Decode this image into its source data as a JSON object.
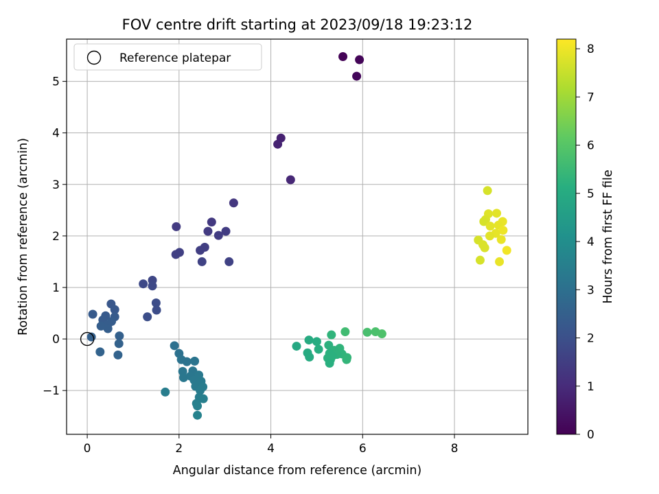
{
  "chart_data": {
    "type": "scatter",
    "title": "FOV centre drift starting at 2023/09/18 19:23:12",
    "xlabel": "Angular distance from reference (arcmin)",
    "ylabel": "Rotation from reference (arcmin)",
    "xlim": [
      -0.45,
      9.6
    ],
    "ylim": [
      -1.85,
      5.82
    ],
    "xticks": [
      "0",
      "2",
      "4",
      "6",
      "8"
    ],
    "yticks": [
      "−1",
      "0",
      "1",
      "2",
      "3",
      "4",
      "5"
    ],
    "grid": true,
    "legend": {
      "placement": "top-left",
      "label": "Reference platepar"
    },
    "reference_point": {
      "x": 0,
      "y": 0
    },
    "colorbar": {
      "label": "Hours from first FF file",
      "range": [
        0,
        8.2
      ],
      "ticks": [
        "0",
        "1",
        "2",
        "3",
        "4",
        "5",
        "6",
        "7",
        "8"
      ],
      "colormap": "viridis"
    },
    "points": [
      {
        "x": 5.57,
        "y": 5.48,
        "c": 0.05
      },
      {
        "x": 5.93,
        "y": 5.42,
        "c": 0.1
      },
      {
        "x": 5.87,
        "y": 5.1,
        "c": 0.15
      },
      {
        "x": 4.22,
        "y": 3.9,
        "c": 0.75
      },
      {
        "x": 4.15,
        "y": 3.78,
        "c": 0.8
      },
      {
        "x": 4.43,
        "y": 3.09,
        "c": 0.9
      },
      {
        "x": 3.19,
        "y": 2.64,
        "c": 1.3
      },
      {
        "x": 2.71,
        "y": 2.27,
        "c": 1.35
      },
      {
        "x": 1.94,
        "y": 2.18,
        "c": 1.4
      },
      {
        "x": 2.63,
        "y": 2.09,
        "c": 1.4
      },
      {
        "x": 3.02,
        "y": 2.09,
        "c": 1.45
      },
      {
        "x": 2.86,
        "y": 2.01,
        "c": 1.45
      },
      {
        "x": 2.56,
        "y": 1.78,
        "c": 1.5
      },
      {
        "x": 2.46,
        "y": 1.72,
        "c": 1.5
      },
      {
        "x": 2.01,
        "y": 1.68,
        "c": 1.55
      },
      {
        "x": 1.93,
        "y": 1.64,
        "c": 1.55
      },
      {
        "x": 2.5,
        "y": 1.5,
        "c": 1.6
      },
      {
        "x": 3.09,
        "y": 1.5,
        "c": 1.6
      },
      {
        "x": 1.42,
        "y": 1.14,
        "c": 1.75
      },
      {
        "x": 1.22,
        "y": 1.07,
        "c": 1.8
      },
      {
        "x": 1.42,
        "y": 1.03,
        "c": 1.8
      },
      {
        "x": 1.5,
        "y": 0.7,
        "c": 1.9
      },
      {
        "x": 1.51,
        "y": 0.56,
        "c": 1.9
      },
      {
        "x": 1.31,
        "y": 0.43,
        "c": 1.95
      },
      {
        "x": 0.52,
        "y": 0.68,
        "c": 2.2
      },
      {
        "x": 0.6,
        "y": 0.57,
        "c": 2.25
      },
      {
        "x": 0.12,
        "y": 0.48,
        "c": 2.3
      },
      {
        "x": 0.4,
        "y": 0.45,
        "c": 2.3
      },
      {
        "x": 0.6,
        "y": 0.43,
        "c": 2.35
      },
      {
        "x": 0.34,
        "y": 0.37,
        "c": 2.35
      },
      {
        "x": 0.53,
        "y": 0.34,
        "c": 2.4
      },
      {
        "x": 0.45,
        "y": 0.28,
        "c": 2.4
      },
      {
        "x": 0.3,
        "y": 0.25,
        "c": 2.45
      },
      {
        "x": 0.45,
        "y": 0.2,
        "c": 2.45
      },
      {
        "x": 0.7,
        "y": 0.06,
        "c": 2.5
      },
      {
        "x": 0.09,
        "y": 0.04,
        "c": 2.5
      },
      {
        "x": 0.69,
        "y": -0.09,
        "c": 2.55
      },
      {
        "x": 0.28,
        "y": -0.25,
        "c": 2.6
      },
      {
        "x": 0.67,
        "y": -0.31,
        "c": 2.6
      },
      {
        "x": 1.9,
        "y": -0.13,
        "c": 3.0
      },
      {
        "x": 2.0,
        "y": -0.28,
        "c": 3.05
      },
      {
        "x": 2.05,
        "y": -0.4,
        "c": 3.1
      },
      {
        "x": 2.17,
        "y": -0.44,
        "c": 3.1
      },
      {
        "x": 2.34,
        "y": -0.43,
        "c": 3.15
      },
      {
        "x": 2.08,
        "y": -0.63,
        "c": 3.2
      },
      {
        "x": 2.3,
        "y": -0.62,
        "c": 3.2
      },
      {
        "x": 2.1,
        "y": -0.75,
        "c": 3.25
      },
      {
        "x": 2.25,
        "y": -0.72,
        "c": 3.25
      },
      {
        "x": 2.43,
        "y": -0.7,
        "c": 3.3
      },
      {
        "x": 2.33,
        "y": -0.8,
        "c": 3.3
      },
      {
        "x": 2.48,
        "y": -0.82,
        "c": 3.35
      },
      {
        "x": 2.36,
        "y": -0.92,
        "c": 3.35
      },
      {
        "x": 2.52,
        "y": -0.93,
        "c": 3.4
      },
      {
        "x": 2.46,
        "y": -1.0,
        "c": 3.4
      },
      {
        "x": 1.7,
        "y": -1.03,
        "c": 3.45
      },
      {
        "x": 2.44,
        "y": -1.13,
        "c": 3.45
      },
      {
        "x": 2.53,
        "y": -1.16,
        "c": 3.5
      },
      {
        "x": 2.38,
        "y": -1.25,
        "c": 3.5
      },
      {
        "x": 2.4,
        "y": -1.3,
        "c": 3.55
      },
      {
        "x": 2.4,
        "y": -1.48,
        "c": 3.6
      },
      {
        "x": 5.62,
        "y": 0.14,
        "c": 5.6
      },
      {
        "x": 5.32,
        "y": 0.08,
        "c": 5.3
      },
      {
        "x": 4.83,
        "y": -0.02,
        "c": 5.0
      },
      {
        "x": 5.0,
        "y": -0.05,
        "c": 5.05
      },
      {
        "x": 4.56,
        "y": -0.14,
        "c": 4.9
      },
      {
        "x": 5.26,
        "y": -0.12,
        "c": 5.2
      },
      {
        "x": 5.5,
        "y": -0.18,
        "c": 5.3
      },
      {
        "x": 5.04,
        "y": -0.2,
        "c": 5.1
      },
      {
        "x": 5.38,
        "y": -0.22,
        "c": 5.25
      },
      {
        "x": 4.8,
        "y": -0.27,
        "c": 5.0
      },
      {
        "x": 5.28,
        "y": -0.28,
        "c": 5.2
      },
      {
        "x": 5.55,
        "y": -0.29,
        "c": 5.3
      },
      {
        "x": 5.44,
        "y": -0.3,
        "c": 5.25
      },
      {
        "x": 5.34,
        "y": -0.33,
        "c": 5.2
      },
      {
        "x": 4.84,
        "y": -0.35,
        "c": 5.0
      },
      {
        "x": 5.66,
        "y": -0.36,
        "c": 5.35
      },
      {
        "x": 5.24,
        "y": -0.37,
        "c": 5.2
      },
      {
        "x": 5.65,
        "y": -0.4,
        "c": 5.35
      },
      {
        "x": 5.3,
        "y": -0.4,
        "c": 5.2
      },
      {
        "x": 5.28,
        "y": -0.47,
        "c": 5.15
      },
      {
        "x": 6.1,
        "y": 0.13,
        "c": 5.75
      },
      {
        "x": 6.28,
        "y": 0.14,
        "c": 5.8
      },
      {
        "x": 6.42,
        "y": 0.1,
        "c": 5.85
      },
      {
        "x": 8.72,
        "y": 2.88,
        "c": 7.7
      },
      {
        "x": 8.74,
        "y": 2.43,
        "c": 7.8
      },
      {
        "x": 8.92,
        "y": 2.44,
        "c": 7.85
      },
      {
        "x": 8.68,
        "y": 2.32,
        "c": 7.75
      },
      {
        "x": 8.64,
        "y": 2.28,
        "c": 7.7
      },
      {
        "x": 9.05,
        "y": 2.28,
        "c": 7.95
      },
      {
        "x": 8.78,
        "y": 2.19,
        "c": 7.85
      },
      {
        "x": 8.96,
        "y": 2.21,
        "c": 7.9
      },
      {
        "x": 9.06,
        "y": 2.11,
        "c": 8.0
      },
      {
        "x": 8.9,
        "y": 2.05,
        "c": 7.9
      },
      {
        "x": 8.77,
        "y": 2.0,
        "c": 7.85
      },
      {
        "x": 9.02,
        "y": 1.93,
        "c": 7.95
      },
      {
        "x": 8.52,
        "y": 1.92,
        "c": 7.7
      },
      {
        "x": 8.62,
        "y": 1.83,
        "c": 7.75
      },
      {
        "x": 8.66,
        "y": 1.77,
        "c": 7.75
      },
      {
        "x": 9.14,
        "y": 1.72,
        "c": 8.05
      },
      {
        "x": 8.56,
        "y": 1.53,
        "c": 7.7
      },
      {
        "x": 8.98,
        "y": 1.5,
        "c": 7.95
      }
    ]
  }
}
